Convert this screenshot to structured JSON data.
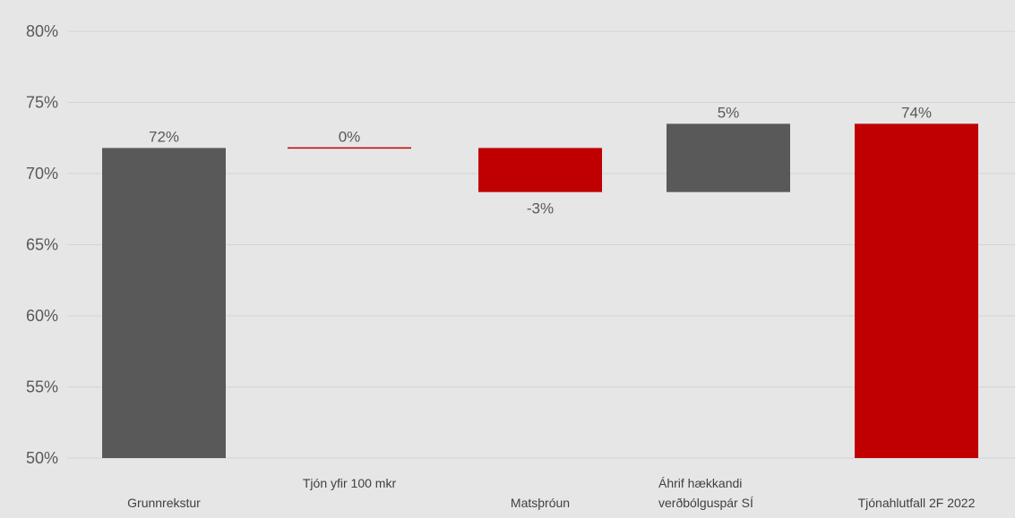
{
  "chart_data": {
    "type": "waterfall",
    "categories": [
      "Grunnrekstur",
      "Tjón yfir 100 mkr",
      "Matsþróun",
      "Áhrif hækkandi verðbólguspár SÍ",
      "Tjónahlutfall 2F 2022"
    ],
    "category_lines": [
      [
        "Grunnrekstur"
      ],
      [
        "Tjón yfir 100 mkr"
      ],
      [
        "Matsþróun"
      ],
      [
        "Áhrif hækkandi",
        "verðbólguspár SÍ"
      ],
      [
        "Tjónahlutfall 2F 2022"
      ]
    ],
    "bars": [
      {
        "start": 50,
        "end": 71.8,
        "value_label": "72%",
        "color": "#595959",
        "label_pos": "top"
      },
      {
        "start": 71.8,
        "end": 71.8,
        "value_label": "0%",
        "color": "#c00000",
        "label_pos": "top"
      },
      {
        "start": 71.8,
        "end": 68.7,
        "value_label": "-3%",
        "color": "#c00000",
        "label_pos": "bottom"
      },
      {
        "start": 68.7,
        "end": 73.5,
        "value_label": "5%",
        "color": "#595959",
        "label_pos": "top"
      },
      {
        "start": 50,
        "end": 73.5,
        "value_label": "74%",
        "color": "#c00000",
        "label_pos": "top"
      }
    ],
    "values": [
      71.8,
      0,
      -3.1,
      4.8,
      73.5
    ],
    "yticks": [
      50,
      55,
      60,
      65,
      70,
      75,
      80
    ],
    "ytick_labels": [
      "50%",
      "55%",
      "60%",
      "65%",
      "70%",
      "75%",
      "80%"
    ],
    "ylim": [
      50,
      80
    ],
    "grid": true,
    "legend": "none",
    "title": "",
    "xlabel": "",
    "ylabel": ""
  }
}
